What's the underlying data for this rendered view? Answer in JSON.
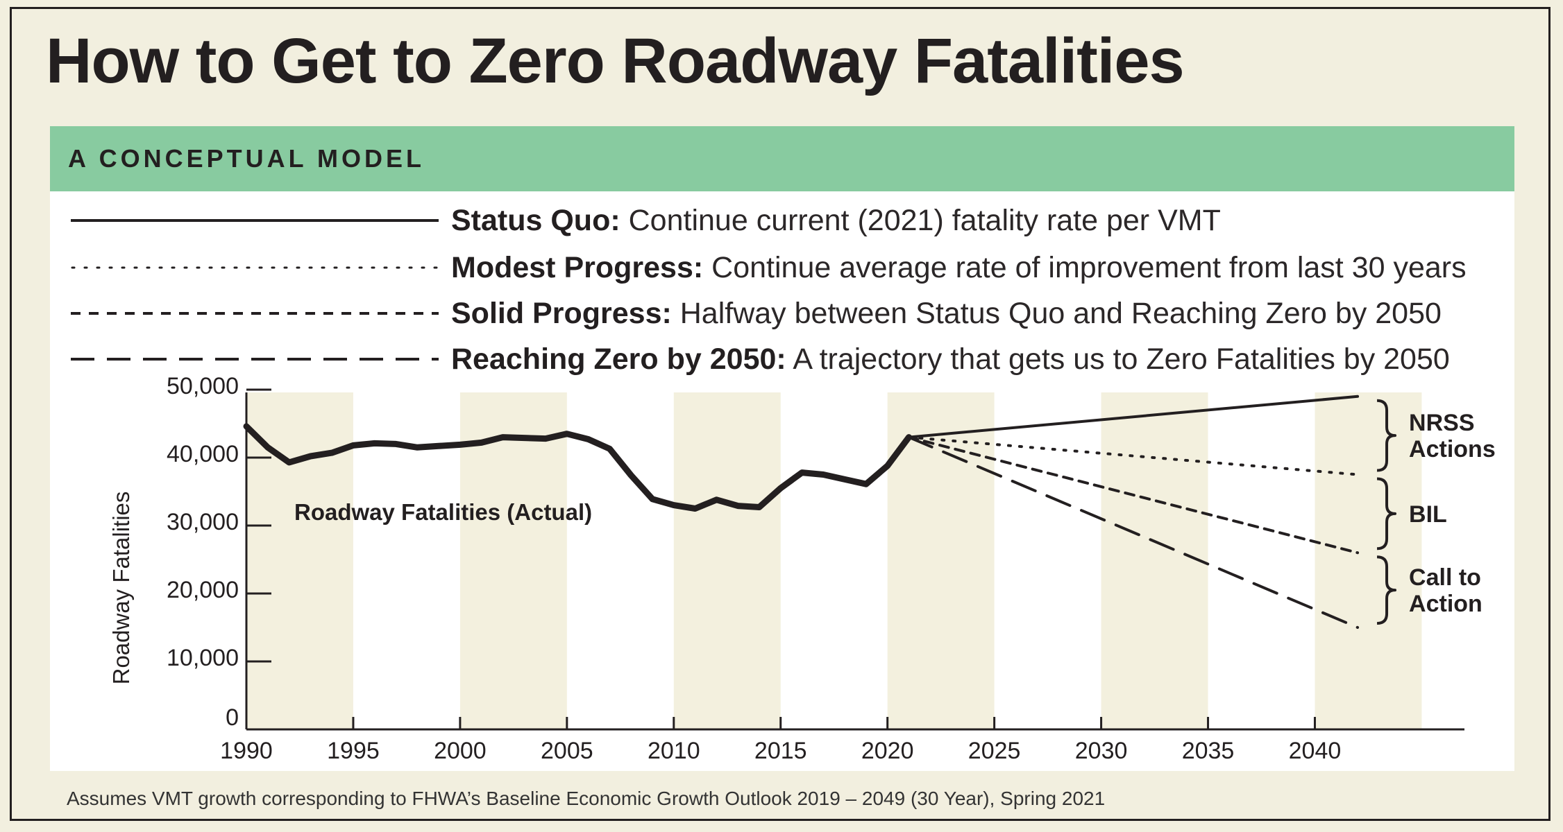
{
  "title": "How to Get to Zero Roadway Fatalities",
  "banner": "A CONCEPTUAL MODEL",
  "legend": [
    {
      "name": "Status Quo:",
      "desc": "Continue current (2021) fatality rate per VMT",
      "style": "solid"
    },
    {
      "name": "Modest Progress:",
      "desc": "Continue average rate of improvement from last 30 years",
      "style": "dotted"
    },
    {
      "name": "Solid Progress:",
      "desc": "Halfway between Status Quo and Reaching Zero by 2050",
      "style": "short-dash"
    },
    {
      "name": "Reaching Zero by 2050:",
      "desc": "A trajectory that gets us to Zero Fatalities by 2050",
      "style": "long-dash"
    }
  ],
  "footnote": "Assumes VMT growth corresponding to FHWA’s Baseline Economic Growth Outlook 2019 – 2049 (30 Year), Spring 2021",
  "colors": {
    "background": "#f2efdf",
    "banner": "#88cba0",
    "band": "#f3f0de",
    "ink": "#231f20"
  },
  "chart_data": {
    "type": "line",
    "ylabel": "Roadway Fatalities",
    "xlabel": "",
    "xlim": [
      1990,
      2047
    ],
    "ylim": [
      0,
      50000
    ],
    "x_ticks": [
      1990,
      1995,
      2000,
      2005,
      2010,
      2015,
      2020,
      2025,
      2030,
      2035,
      2040
    ],
    "y_ticks": [
      0,
      10000,
      20000,
      30000,
      40000,
      50000
    ],
    "y_tick_labels": [
      "0",
      "10,000",
      "20,000",
      "30,000",
      "40,000",
      "50,000"
    ],
    "shaded_bands": [
      [
        1990,
        1995
      ],
      [
        2000,
        2005
      ],
      [
        2010,
        2015
      ],
      [
        2020,
        2025
      ],
      [
        2030,
        2035
      ],
      [
        2040,
        2045
      ]
    ],
    "actual": {
      "name": "Roadway Fatalities (Actual)",
      "x": [
        1990,
        1991,
        1992,
        1993,
        1994,
        1995,
        1996,
        1997,
        1998,
        1999,
        2000,
        2001,
        2002,
        2003,
        2004,
        2005,
        2006,
        2007,
        2008,
        2009,
        2010,
        2011,
        2012,
        2013,
        2014,
        2015,
        2016,
        2017,
        2018,
        2019,
        2020,
        2021
      ],
      "y": [
        44600,
        41500,
        39300,
        40200,
        40700,
        41800,
        42100,
        42000,
        41500,
        41700,
        41900,
        42200,
        43000,
        42900,
        42800,
        43500,
        42700,
        41300,
        37400,
        33900,
        33000,
        32500,
        33800,
        32900,
        32700,
        35500,
        37800,
        37500,
        36800,
        36100,
        38800,
        43000
      ]
    },
    "projections": [
      {
        "name": "Status Quo",
        "style": "solid",
        "x": [
          2021,
          2042
        ],
        "y": [
          43000,
          49000
        ]
      },
      {
        "name": "Modest Progress",
        "style": "dotted",
        "x": [
          2021,
          2042
        ],
        "y": [
          43000,
          37500
        ]
      },
      {
        "name": "Solid Progress",
        "style": "short-dash",
        "x": [
          2021,
          2042
        ],
        "y": [
          43000,
          26000
        ]
      },
      {
        "name": "Reaching Zero by 2050",
        "style": "long-dash",
        "x": [
          2021,
          2042
        ],
        "y": [
          43000,
          15000
        ]
      }
    ],
    "annotations": [
      {
        "label_lines": [
          "NRSS",
          "Actions"
        ],
        "y_range": [
          37500,
          49000
        ]
      },
      {
        "label_lines": [
          "BIL"
        ],
        "y_range": [
          26000,
          37500
        ]
      },
      {
        "label_lines": [
          "Call to",
          "Action"
        ],
        "y_range": [
          15000,
          26000
        ]
      }
    ]
  }
}
